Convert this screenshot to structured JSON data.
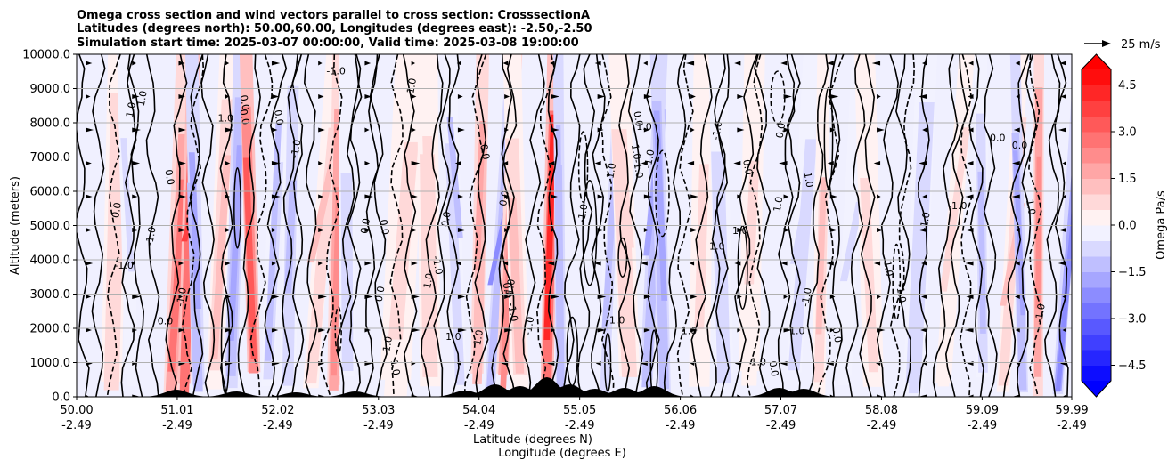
{
  "chart_data": {
    "type": "heatmap",
    "title_lines": [
      "Omega cross section and wind vectors parallel to cross section: CrosssectionA",
      "Latitudes (degrees north): 50.00,60.00, Longitudes (degrees east): -2.50,-2.50",
      "Simulation start time: 2025-03-07 00:00:00, Valid time: 2025-03-08 19:00:00"
    ],
    "ylabel": "Altitude (meters)",
    "xlabel_line1": "Latitude (degrees N)",
    "xlabel_line2": "Longitude (degrees E)",
    "ylim": [
      0,
      10000
    ],
    "xlim": [
      50.0,
      59.99
    ],
    "y_ticks": [
      {
        "value": 0,
        "label": "0.0"
      },
      {
        "value": 1000,
        "label": "1000.0"
      },
      {
        "value": 2000,
        "label": "2000.0"
      },
      {
        "value": 3000,
        "label": "3000.0"
      },
      {
        "value": 4000,
        "label": "4000.0"
      },
      {
        "value": 5000,
        "label": "5000.0"
      },
      {
        "value": 6000,
        "label": "6000.0"
      },
      {
        "value": 7000,
        "label": "7000.0"
      },
      {
        "value": 8000,
        "label": "8000.0"
      },
      {
        "value": 9000,
        "label": "9000.0"
      },
      {
        "value": 10000,
        "label": "10000.0"
      }
    ],
    "x_ticks": [
      {
        "value": 50.0,
        "lat": "50.00",
        "lon": "-2.49"
      },
      {
        "value": 51.01,
        "lat": "51.01",
        "lon": "-2.49"
      },
      {
        "value": 52.02,
        "lat": "52.02",
        "lon": "-2.49"
      },
      {
        "value": 53.03,
        "lat": "53.03",
        "lon": "-2.49"
      },
      {
        "value": 54.04,
        "lat": "54.04",
        "lon": "-2.49"
      },
      {
        "value": 55.05,
        "lat": "55.05",
        "lon": "-2.49"
      },
      {
        "value": 56.06,
        "lat": "56.06",
        "lon": "-2.49"
      },
      {
        "value": 57.07,
        "lat": "57.07",
        "lon": "-2.49"
      },
      {
        "value": 58.08,
        "lat": "58.08",
        "lon": "-2.49"
      },
      {
        "value": 59.09,
        "lat": "59.09",
        "lon": "-2.49"
      },
      {
        "value": 59.99,
        "lat": "59.99",
        "lon": "-2.49"
      }
    ],
    "grid": "horizontal",
    "colorbar": {
      "label": "Omega Pa/s",
      "min": -5.0,
      "max": 5.0,
      "levels": 20,
      "extend": "both",
      "colormap": "bwr",
      "ticks": [
        {
          "value": 4.5,
          "label": "4.5"
        },
        {
          "value": 3.0,
          "label": "3.0"
        },
        {
          "value": 1.5,
          "label": "1.5"
        },
        {
          "value": 0.0,
          "label": "0.0"
        },
        {
          "value": -1.5,
          "label": "−1.5"
        },
        {
          "value": -3.0,
          "label": "−3.0"
        },
        {
          "value": -4.5,
          "label": "−4.5"
        }
      ]
    },
    "vector_key": {
      "label": "25 m/s",
      "value": 25
    },
    "contour_labels": [
      "0.0",
      "1.0",
      "-1.0"
    ],
    "bands": [
      {
        "lat": 50.35,
        "w": 0.08,
        "level": 0.9
      },
      {
        "lat": 50.55,
        "w": 0.05,
        "level": -0.6
      },
      {
        "lat": 50.95,
        "w": 0.06,
        "level": 2.6
      },
      {
        "lat": 51.08,
        "w": 0.05,
        "level": 3.8
      },
      {
        "lat": 51.22,
        "w": 0.05,
        "level": -1.8
      },
      {
        "lat": 51.38,
        "w": 0.06,
        "level": 1.4
      },
      {
        "lat": 51.55,
        "w": 0.05,
        "level": -1.6
      },
      {
        "lat": 51.78,
        "w": 0.05,
        "level": 3.2
      },
      {
        "lat": 51.92,
        "w": 0.05,
        "level": -1.3
      },
      {
        "lat": 52.12,
        "w": 0.06,
        "level": -1.1
      },
      {
        "lat": 52.35,
        "w": 0.06,
        "level": 1.2
      },
      {
        "lat": 52.58,
        "w": 0.05,
        "level": 2.4
      },
      {
        "lat": 52.72,
        "w": 0.06,
        "level": -0.9
      },
      {
        "lat": 53.2,
        "w": 0.12,
        "level": 0.7
      },
      {
        "lat": 53.55,
        "w": 0.08,
        "level": 0.8
      },
      {
        "lat": 53.85,
        "w": 0.05,
        "level": -1.4
      },
      {
        "lat": 54.02,
        "w": 0.05,
        "level": 1.6
      },
      {
        "lat": 54.15,
        "w": 0.04,
        "level": -2.1
      },
      {
        "lat": 54.28,
        "w": 0.05,
        "level": 2.2
      },
      {
        "lat": 54.45,
        "w": 0.07,
        "level": 1.0
      },
      {
        "lat": 54.72,
        "w": 0.05,
        "level": 4.2
      },
      {
        "lat": 54.86,
        "w": 0.04,
        "level": -1.5
      },
      {
        "lat": 55.3,
        "w": 0.05,
        "level": -1.2
      },
      {
        "lat": 55.55,
        "w": 0.08,
        "level": 0.8
      },
      {
        "lat": 55.72,
        "w": 0.05,
        "level": -2.0
      },
      {
        "lat": 55.9,
        "w": 0.05,
        "level": -1.6
      },
      {
        "lat": 56.25,
        "w": 0.08,
        "level": 0.7
      },
      {
        "lat": 56.5,
        "w": 0.07,
        "level": -0.9
      },
      {
        "lat": 56.75,
        "w": 0.08,
        "level": 0.7
      },
      {
        "lat": 57.2,
        "w": 0.06,
        "level": -1.0
      },
      {
        "lat": 57.45,
        "w": 0.05,
        "level": 1.1
      },
      {
        "lat": 57.7,
        "w": 0.06,
        "level": -0.7
      },
      {
        "lat": 58.0,
        "w": 0.08,
        "level": 0.6
      },
      {
        "lat": 58.4,
        "w": 0.08,
        "level": -0.8
      },
      {
        "lat": 58.7,
        "w": 0.06,
        "level": 0.6
      },
      {
        "lat": 59.1,
        "w": 0.05,
        "level": -1.4
      },
      {
        "lat": 59.3,
        "w": 0.05,
        "level": 1.2
      },
      {
        "lat": 59.5,
        "w": 0.04,
        "level": -1.9
      },
      {
        "lat": 59.65,
        "w": 0.04,
        "level": 2.4
      },
      {
        "lat": 59.85,
        "w": 0.04,
        "level": -2.2
      }
    ]
  }
}
